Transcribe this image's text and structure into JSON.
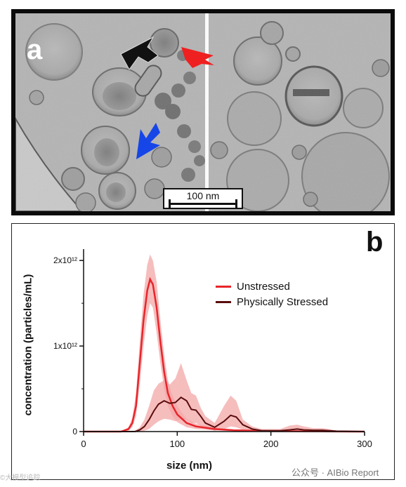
{
  "panel_a": {
    "letter": "a",
    "scale_bar_label": "100 nm"
  },
  "panel_b": {
    "letter": "b"
  },
  "watermark": "公众号 · AIBio Report",
  "corner_text": "©大模型追踪",
  "colors": {
    "unstressed": "#e8252b",
    "unstressed_band": "#f3a7a7",
    "stressed": "#5a0c0c",
    "arrow_red": "#ef2020",
    "arrow_blue": "#1646e8",
    "arrow_black": "#111111"
  },
  "icons": [
    "black-arrow-icon",
    "red-arrow-icon",
    "blue-arrow-icon"
  ],
  "chart_data": {
    "type": "line",
    "title": "",
    "xlabel": "size (nm)",
    "ylabel": "concentration (particles/mL)",
    "xlim": [
      0,
      300
    ],
    "ylim": [
      0,
      2100000000000.0
    ],
    "xticks": [
      0,
      100,
      200,
      300
    ],
    "xtick_labels": [
      "0",
      "100",
      "200",
      "300"
    ],
    "yticks": [
      0,
      1000000000000.0,
      2000000000000.0
    ],
    "ytick_labels": [
      "0",
      "1x10¹²",
      "2x10¹²"
    ],
    "grid": false,
    "legend_position": "top-right",
    "series": [
      {
        "name": "Unstressed",
        "x": [
          0,
          40,
          48,
          52,
          56,
          60,
          64,
          68,
          71,
          74,
          78,
          82,
          86,
          90,
          95,
          100,
          105,
          110,
          120,
          140,
          160,
          200,
          300
        ],
        "values": [
          0,
          0,
          30000000000.0,
          100000000000.0,
          300000000000.0,
          800000000000.0,
          1300000000000.0,
          1650000000000.0,
          1780000000000.0,
          1720000000000.0,
          1450000000000.0,
          1050000000000.0,
          700000000000.0,
          450000000000.0,
          300000000000.0,
          200000000000.0,
          150000000000.0,
          100000000000.0,
          60000000000.0,
          30000000000.0,
          15000000000.0,
          5000000000.0,
          0
        ]
      },
      {
        "name": "Physically Stressed",
        "x": [
          0,
          55,
          60,
          65,
          70,
          75,
          80,
          86,
          92,
          98,
          104,
          110,
          115,
          120,
          125,
          130,
          140,
          150,
          157,
          163,
          170,
          180,
          190,
          200,
          210,
          220,
          228,
          235,
          245,
          255,
          262,
          270,
          300
        ],
        "values": [
          0,
          0,
          20000000000.0,
          60000000000.0,
          140000000000.0,
          240000000000.0,
          320000000000.0,
          360000000000.0,
          330000000000.0,
          340000000000.0,
          400000000000.0,
          360000000000.0,
          260000000000.0,
          250000000000.0,
          180000000000.0,
          100000000000.0,
          50000000000.0,
          120000000000.0,
          190000000000.0,
          170000000000.0,
          80000000000.0,
          30000000000.0,
          10000000000.0,
          10000000000.0,
          10000000000.0,
          20000000000.0,
          30000000000.0,
          20000000000.0,
          15000000000.0,
          15000000000.0,
          10000000000.0,
          5000000000.0,
          0
        ]
      }
    ],
    "error_band": {
      "series": "Physically Stressed",
      "x": [
        0,
        55,
        60,
        65,
        70,
        75,
        80,
        86,
        92,
        98,
        104,
        110,
        115,
        120,
        125,
        130,
        140,
        150,
        157,
        163,
        170,
        180,
        190,
        200,
        210,
        220,
        228,
        235,
        245,
        255,
        262,
        270,
        300
      ],
      "upper": [
        0,
        10000000000.0,
        50000000000.0,
        140000000000.0,
        300000000000.0,
        480000000000.0,
        560000000000.0,
        600000000000.0,
        550000000000.0,
        620000000000.0,
        800000000000.0,
        600000000000.0,
        450000000000.0,
        420000000000.0,
        280000000000.0,
        180000000000.0,
        100000000000.0,
        300000000000.0,
        420000000000.0,
        360000000000.0,
        140000000000.0,
        60000000000.0,
        30000000000.0,
        30000000000.0,
        30000000000.0,
        70000000000.0,
        80000000000.0,
        60000000000.0,
        40000000000.0,
        40000000000.0,
        30000000000.0,
        10000000000.0,
        0
      ],
      "lower": [
        0,
        0,
        0,
        10000000000.0,
        30000000000.0,
        80000000000.0,
        120000000000.0,
        150000000000.0,
        140000000000.0,
        120000000000.0,
        140000000000.0,
        140000000000.0,
        100000000000.0,
        100000000000.0,
        70000000000.0,
        30000000000.0,
        10000000000.0,
        30000000000.0,
        60000000000.0,
        50000000000.0,
        20000000000.0,
        5000000000.0,
        0,
        0,
        0,
        0,
        0,
        0,
        0,
        0,
        0,
        0,
        0
      ],
      "unstressed_upper": [
        0,
        0,
        50000000000.0,
        160000000000.0,
        450000000000.0,
        1050000000000.0,
        1600000000000.0,
        1950000000000.0,
        2070000000000.0,
        2000000000000.0,
        1750000000000.0,
        1300000000000.0,
        900000000000.0,
        600000000000.0,
        420000000000.0,
        300000000000.0,
        220000000000.0,
        150000000000.0,
        90000000000.0,
        50000000000.0,
        25000000000.0,
        10000000000.0,
        0
      ],
      "unstressed_lower": [
        0,
        0,
        10000000000.0,
        50000000000.0,
        180000000000.0,
        550000000000.0,
        1000000000000.0,
        1350000000000.0,
        1500000000000.0,
        1450000000000.0,
        1150000000000.0,
        800000000000.0,
        500000000000.0,
        300000000000.0,
        180000000000.0,
        110000000000.0,
        80000000000.0,
        50000000000.0,
        30000000000.0,
        15000000000.0,
        5000000000.0,
        0,
        0
      ]
    }
  }
}
